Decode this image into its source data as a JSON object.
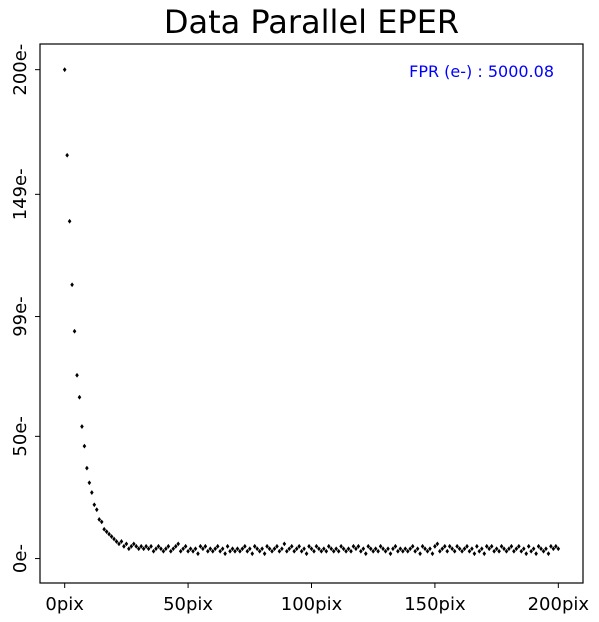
{
  "chart_data": {
    "type": "scatter",
    "title": "Data Parallel EPER",
    "xlabel": "",
    "ylabel": "",
    "xlim": [
      -10,
      210
    ],
    "ylim": [
      -10,
      210.5
    ],
    "x_ticks": [
      0,
      50,
      100,
      150,
      200
    ],
    "x_tick_labels": [
      "0pix",
      "50pix",
      "100pix",
      "150pix",
      "200pix"
    ],
    "y_ticks": [
      0,
      50,
      99,
      149,
      200
    ],
    "y_tick_labels": [
      "0e-",
      "50e-",
      "99e-",
      "149e-",
      "200e-"
    ],
    "grid": false,
    "marker_color": "#000000",
    "annotation": {
      "text": "FPR (e-) : 5000.08",
      "color": "#0000ff",
      "position": "top-right"
    },
    "series": [
      {
        "x": [
          0,
          1,
          2,
          3,
          4,
          5,
          6,
          7,
          8,
          9,
          10,
          11,
          12,
          13,
          14,
          15,
          16,
          17,
          18,
          19,
          20,
          21,
          22,
          23,
          24,
          25,
          26,
          27,
          28,
          29,
          30,
          31,
          32,
          33,
          34,
          35,
          36,
          37,
          38,
          39,
          40,
          41,
          42,
          43,
          44,
          45,
          46,
          47,
          48,
          49,
          50,
          51,
          52,
          53,
          54,
          55,
          56,
          57,
          58,
          59,
          60,
          61,
          62,
          63,
          64,
          65,
          66,
          67,
          68,
          69,
          70,
          71,
          72,
          73,
          74,
          75,
          76,
          77,
          78,
          79,
          80,
          81,
          82,
          83,
          84,
          85,
          86,
          87,
          88,
          89,
          90,
          91,
          92,
          93,
          94,
          95,
          96,
          97,
          98,
          99,
          100,
          101,
          102,
          103,
          104,
          105,
          106,
          107,
          108,
          109,
          110,
          111,
          112,
          113,
          114,
          115,
          116,
          117,
          118,
          119,
          120,
          121,
          122,
          123,
          124,
          125,
          126,
          127,
          128,
          129,
          130,
          131,
          132,
          133,
          134,
          135,
          136,
          137,
          138,
          139,
          140,
          141,
          142,
          143,
          144,
          145,
          146,
          147,
          148,
          149,
          150,
          151,
          152,
          153,
          154,
          155,
          156,
          157,
          158,
          159,
          160,
          161,
          162,
          163,
          164,
          165,
          166,
          167,
          168,
          169,
          170,
          171,
          172,
          173,
          174,
          175,
          176,
          177,
          178,
          179,
          180,
          181,
          182,
          183,
          184,
          185,
          186,
          187,
          188,
          189,
          190,
          191,
          192,
          193,
          194,
          195,
          196,
          197,
          198,
          199,
          200
        ],
        "y": [
          200,
          165,
          138,
          112,
          93,
          75,
          66,
          54,
          46,
          37,
          31,
          27,
          22,
          20,
          16,
          15,
          12,
          11,
          10,
          9,
          8,
          7,
          6,
          7,
          5,
          6,
          4,
          5,
          6,
          5,
          4,
          5,
          4,
          5,
          4,
          5,
          3,
          4,
          5,
          4,
          3,
          4,
          5,
          3,
          4,
          5,
          6,
          3,
          4,
          5,
          3,
          4,
          3,
          4,
          2,
          5,
          4,
          5,
          3,
          4,
          3,
          4,
          5,
          3,
          4,
          2,
          5,
          3,
          4,
          3,
          4,
          3,
          4,
          5,
          3,
          4,
          2,
          5,
          4,
          3,
          4,
          2,
          5,
          4,
          3,
          4,
          5,
          3,
          4,
          6,
          3,
          4,
          5,
          3,
          4,
          5,
          3,
          4,
          2,
          5,
          4,
          3,
          5,
          4,
          3,
          4,
          3,
          5,
          4,
          3,
          4,
          3,
          5,
          4,
          3,
          4,
          3,
          5,
          4,
          5,
          3,
          4,
          2,
          5,
          4,
          3,
          4,
          3,
          5,
          4,
          3,
          4,
          2,
          4,
          5,
          3,
          4,
          3,
          4,
          3,
          4,
          5,
          3,
          4,
          2,
          5,
          4,
          3,
          4,
          2,
          5,
          6,
          3,
          4,
          5,
          3,
          5,
          4,
          3,
          5,
          4,
          3,
          4,
          5,
          3,
          4,
          2,
          5,
          3,
          4,
          2,
          5,
          4,
          5,
          3,
          4,
          3,
          5,
          4,
          3,
          4,
          5,
          3,
          4,
          5,
          3,
          4,
          2,
          5,
          3,
          4,
          2,
          5,
          4,
          3,
          4,
          2,
          5,
          4,
          5,
          4
        ]
      }
    ]
  }
}
